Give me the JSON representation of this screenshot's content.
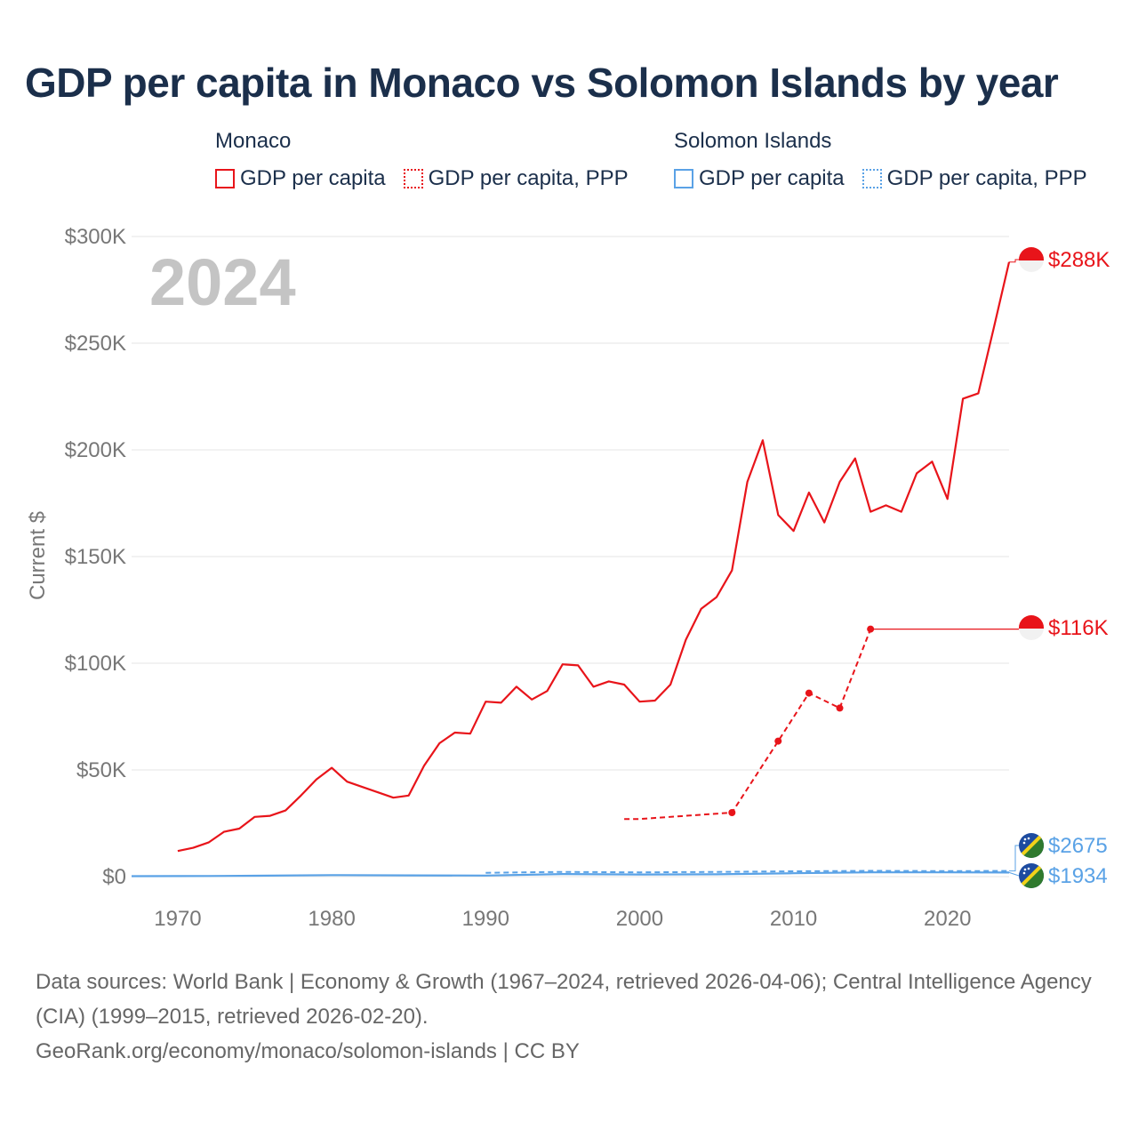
{
  "title": "GDP per capita in Monaco vs Solomon Islands by year",
  "year_watermark": "2024",
  "legend": {
    "groups": [
      {
        "country": "Monaco",
        "items": [
          {
            "label": "GDP per capita",
            "style": "solid",
            "color": "#e8141a"
          },
          {
            "label": "GDP per capita, PPP",
            "style": "dotted",
            "color": "#e8141a"
          }
        ]
      },
      {
        "country": "Solomon Islands",
        "items": [
          {
            "label": "GDP per capita",
            "style": "solid",
            "color": "#5aa2e6"
          },
          {
            "label": "GDP per capita, PPP",
            "style": "dotted",
            "color": "#5aa2e6"
          }
        ]
      }
    ]
  },
  "footer": {
    "sources": "Data sources: World Bank | Economy & Growth (1967–2024, retrieved 2026-04-06); Central Intelligence Agency (CIA) (1999–2015, retrieved 2026-02-20).",
    "site": "GeoRank.org/economy/monaco/solomon-islands | CC BY"
  },
  "chart_data": {
    "type": "line",
    "title": "GDP per capita in Monaco vs Solomon Islands by year",
    "ylabel": "Current $",
    "xlabel": "",
    "xlim": [
      1967,
      2024
    ],
    "ylim": [
      0,
      300000
    ],
    "x_ticks": [
      1970,
      1980,
      1990,
      2000,
      2010,
      2020
    ],
    "y_ticks": [
      0,
      50000,
      100000,
      150000,
      200000,
      250000,
      300000
    ],
    "y_tick_labels": [
      "$0",
      "$50K",
      "$100K",
      "$150K",
      "$200K",
      "$250K",
      "$300K"
    ],
    "grid": true,
    "series": [
      {
        "name": "Monaco GDP per capita",
        "country": "Monaco",
        "color": "#e8141a",
        "style": "solid",
        "end_label": "$288K",
        "x": [
          1970,
          1971,
          1972,
          1973,
          1974,
          1975,
          1976,
          1977,
          1978,
          1979,
          1980,
          1981,
          1982,
          1983,
          1984,
          1985,
          1986,
          1987,
          1988,
          1989,
          1990,
          1991,
          1992,
          1993,
          1994,
          1995,
          1996,
          1997,
          1998,
          1999,
          2000,
          2001,
          2002,
          2003,
          2004,
          2005,
          2006,
          2007,
          2008,
          2009,
          2010,
          2011,
          2012,
          2013,
          2014,
          2015,
          2016,
          2017,
          2018,
          2019,
          2020,
          2021,
          2022,
          2023,
          2024
        ],
        "y": [
          12000,
          13500,
          16000,
          21000,
          22500,
          28000,
          28500,
          31000,
          38000,
          45500,
          51000,
          44500,
          42000,
          39500,
          37000,
          38000,
          52000,
          62500,
          67500,
          67000,
          82000,
          81500,
          89000,
          83000,
          87000,
          99500,
          99000,
          89000,
          91500,
          90000,
          82000,
          82500,
          90000,
          111000,
          125500,
          131000,
          143500,
          185000,
          204500,
          169500,
          162000,
          180000,
          166000,
          185000,
          196000,
          171000,
          174000,
          171000,
          189000,
          194500,
          177000,
          224000,
          226500,
          257000,
          288000
        ]
      },
      {
        "name": "Monaco GDP per capita, PPP",
        "country": "Monaco",
        "color": "#e8141a",
        "style": "dashed",
        "end_label": "$116K",
        "end_extend": true,
        "x": [
          1999,
          2000,
          2006,
          2009,
          2011,
          2013,
          2015
        ],
        "y": [
          27000,
          27000,
          30000,
          63500,
          86000,
          79000,
          116000
        ],
        "markers": [
          2006,
          2009,
          2011,
          2013,
          2015
        ]
      },
      {
        "name": "Solomon Islands GDP per capita",
        "country": "Solomon Islands",
        "color": "#5aa2e6",
        "style": "solid",
        "end_label": "$1934",
        "x": [
          1967,
          1970,
          1972,
          1975,
          1980,
          1985,
          1990,
          1995,
          2000,
          2005,
          2010,
          2015,
          2020,
          2024
        ],
        "y": [
          200,
          250,
          300,
          400,
          700,
          600,
          500,
          1200,
          1000,
          1100,
          1600,
          2000,
          2000,
          1934
        ]
      },
      {
        "name": "Solomon Islands GDP per capita, PPP",
        "country": "Solomon Islands",
        "color": "#5aa2e6",
        "style": "dashed",
        "end_label": "$2675",
        "x": [
          1990,
          1995,
          2000,
          2005,
          2010,
          2015,
          2020,
          2024
        ],
        "y": [
          1800,
          2200,
          2000,
          2200,
          2500,
          2700,
          2600,
          2675
        ]
      }
    ]
  }
}
